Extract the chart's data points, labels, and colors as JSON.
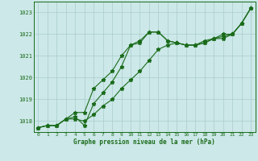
{
  "x_values": [
    0,
    1,
    2,
    3,
    4,
    5,
    6,
    7,
    8,
    9,
    10,
    11,
    12,
    13,
    14,
    15,
    16,
    17,
    18,
    19,
    20,
    21,
    22,
    23
  ],
  "line1": [
    1017.7,
    1017.8,
    1017.8,
    1018.1,
    1018.2,
    1017.8,
    1018.8,
    1019.3,
    1019.8,
    1020.5,
    1021.5,
    1021.6,
    1022.1,
    1022.1,
    1021.7,
    1021.6,
    1021.5,
    1021.5,
    1021.7,
    1021.8,
    1021.8,
    1022.0,
    1022.5,
    1023.2
  ],
  "line2": [
    1017.7,
    1017.8,
    1017.8,
    1018.1,
    1018.4,
    1018.4,
    1019.5,
    1019.9,
    1020.3,
    1021.0,
    1021.5,
    1021.7,
    1022.1,
    1022.1,
    1021.7,
    1021.6,
    1021.5,
    1021.5,
    1021.6,
    1021.8,
    1021.9,
    1022.0,
    1022.5,
    1023.2
  ],
  "line3": [
    1017.7,
    1017.8,
    1017.8,
    1018.1,
    1018.1,
    1018.0,
    1018.3,
    1018.7,
    1019.0,
    1019.5,
    1019.9,
    1020.3,
    1020.8,
    1021.3,
    1021.5,
    1021.6,
    1021.5,
    1021.5,
    1021.6,
    1021.8,
    1022.0,
    1022.0,
    1022.5,
    1023.2
  ],
  "line_color": "#1a6b1a",
  "bg_color": "#cce8e8",
  "grid_color": "#aacccc",
  "text_color": "#1a6b1a",
  "ylim_min": 1017.5,
  "ylim_max": 1023.5,
  "yticks": [
    1018,
    1019,
    1020,
    1021,
    1022,
    1023
  ],
  "xlabel": "Graphe pression niveau de la mer (hPa)"
}
